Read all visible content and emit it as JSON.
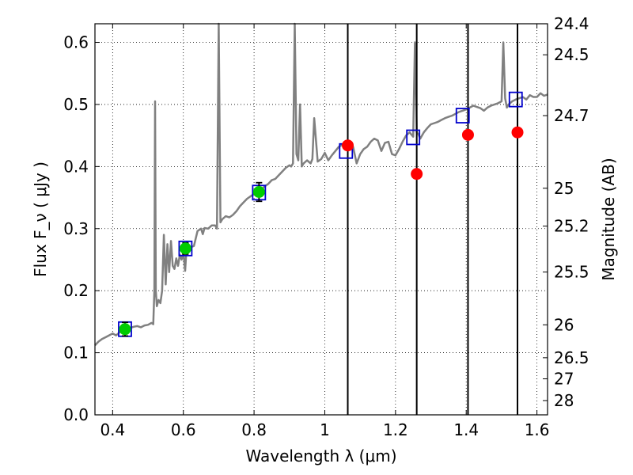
{
  "chart_data": {
    "type": "scatter",
    "title": "",
    "xlabel": "Wavelength  λ (μm)",
    "ylabel": "Flux  F_ν  ( μJy )",
    "ylabel_right": "Magnitude (AB)",
    "xlim": [
      0.35,
      1.63
    ],
    "ylim": [
      0.0,
      0.63
    ],
    "grid": true,
    "legend": "none",
    "x_ticks": [
      0.4,
      0.6,
      0.8,
      1.0,
      1.2,
      1.4,
      1.6
    ],
    "x_tick_labels": [
      "0.4",
      "0.6",
      "0.8",
      "1",
      "1.2",
      "1.4",
      "1.6"
    ],
    "y_ticks": [
      0.0,
      0.1,
      0.2,
      0.3,
      0.4,
      0.5,
      0.6
    ],
    "y_tick_labels": [
      "0.0",
      "0.1",
      "0.2",
      "0.3",
      "0.4",
      "0.5",
      "0.6"
    ],
    "right_ticks": [
      {
        "label": "24.4",
        "flux": 0.63
      },
      {
        "label": "24.5",
        "flux": 0.58
      },
      {
        "label": "24.7",
        "flux": 0.482
      },
      {
        "label": "25",
        "flux": 0.365
      },
      {
        "label": "25.2",
        "flux": 0.304
      },
      {
        "label": "25.5",
        "flux": 0.23
      },
      {
        "label": "26",
        "flux": 0.145
      },
      {
        "label": "26.5",
        "flux": 0.092
      },
      {
        "label": "27",
        "flux": 0.058
      },
      {
        "label": "28",
        "flux": 0.023
      }
    ],
    "colors": {
      "spectrum": "#808080",
      "model_box": "#0000cc",
      "detection": "#00cc00",
      "nondetection": "#ff0000",
      "vline": "#000000"
    },
    "series": [
      {
        "kind": "model-spectrum",
        "x": [
          0.35,
          0.36,
          0.37,
          0.38,
          0.39,
          0.4,
          0.41,
          0.42,
          0.43,
          0.44,
          0.45,
          0.46,
          0.47,
          0.48,
          0.49,
          0.5,
          0.51,
          0.515,
          0.518,
          0.52,
          0.522,
          0.525,
          0.53,
          0.535,
          0.54,
          0.545,
          0.55,
          0.555,
          0.56,
          0.565,
          0.57,
          0.575,
          0.58,
          0.585,
          0.59,
          0.595,
          0.6,
          0.605,
          0.61,
          0.62,
          0.63,
          0.64,
          0.65,
          0.655,
          0.66,
          0.67,
          0.68,
          0.69,
          0.695,
          0.7,
          0.705,
          0.71,
          0.72,
          0.73,
          0.74,
          0.75,
          0.76,
          0.77,
          0.78,
          0.79,
          0.8,
          0.81,
          0.82,
          0.83,
          0.84,
          0.85,
          0.86,
          0.87,
          0.88,
          0.89,
          0.9,
          0.905,
          0.91,
          0.915,
          0.92,
          0.925,
          0.93,
          0.935,
          0.94,
          0.95,
          0.96,
          0.965,
          0.97,
          0.98,
          0.99,
          1.0,
          1.01,
          1.02,
          1.03,
          1.04,
          1.05,
          1.06,
          1.07,
          1.08,
          1.09,
          1.1,
          1.11,
          1.12,
          1.13,
          1.14,
          1.15,
          1.16,
          1.17,
          1.18,
          1.19,
          1.2,
          1.21,
          1.22,
          1.23,
          1.24,
          1.25,
          1.255,
          1.26,
          1.265,
          1.27,
          1.28,
          1.29,
          1.3,
          1.31,
          1.32,
          1.33,
          1.34,
          1.35,
          1.36,
          1.37,
          1.38,
          1.39,
          1.4,
          1.41,
          1.42,
          1.43,
          1.44,
          1.45,
          1.46,
          1.47,
          1.48,
          1.49,
          1.5,
          1.505,
          1.51,
          1.515,
          1.52,
          1.53,
          1.54,
          1.55,
          1.56,
          1.57,
          1.58,
          1.59,
          1.6,
          1.61,
          1.62,
          1.63
        ],
        "y": [
          0.112,
          0.118,
          0.122,
          0.125,
          0.128,
          0.131,
          0.128,
          0.133,
          0.136,
          0.138,
          0.14,
          0.142,
          0.143,
          0.141,
          0.144,
          0.145,
          0.148,
          0.146,
          0.2,
          0.505,
          0.2,
          0.175,
          0.185,
          0.18,
          0.2,
          0.29,
          0.21,
          0.275,
          0.23,
          0.28,
          0.24,
          0.235,
          0.252,
          0.24,
          0.258,
          0.25,
          0.262,
          0.232,
          0.278,
          0.27,
          0.272,
          0.296,
          0.3,
          0.291,
          0.301,
          0.3,
          0.305,
          0.305,
          0.3,
          0.635,
          0.31,
          0.315,
          0.32,
          0.318,
          0.322,
          0.328,
          0.336,
          0.342,
          0.348,
          0.352,
          0.356,
          0.36,
          0.362,
          0.368,
          0.372,
          0.378,
          0.38,
          0.386,
          0.392,
          0.398,
          0.402,
          0.4,
          0.405,
          0.76,
          0.42,
          0.41,
          0.5,
          0.4,
          0.405,
          0.41,
          0.405,
          0.412,
          0.478,
          0.408,
          0.412,
          0.422,
          0.41,
          0.418,
          0.425,
          0.432,
          0.435,
          0.438,
          0.435,
          0.432,
          0.405,
          0.42,
          0.428,
          0.432,
          0.44,
          0.445,
          0.442,
          0.425,
          0.438,
          0.44,
          0.42,
          0.418,
          0.428,
          0.44,
          0.45,
          0.455,
          0.448,
          0.6,
          0.455,
          0.452,
          0.445,
          0.455,
          0.462,
          0.468,
          0.47,
          0.472,
          0.475,
          0.478,
          0.48,
          0.482,
          0.485,
          0.488,
          0.49,
          0.492,
          0.495,
          0.498,
          0.496,
          0.494,
          0.49,
          0.495,
          0.498,
          0.5,
          0.502,
          0.505,
          0.6,
          0.51,
          0.495,
          0.5,
          0.505,
          0.508,
          0.51,
          0.512,
          0.508,
          0.515,
          0.512,
          0.512,
          0.518,
          0.514,
          0.516
        ]
      },
      {
        "kind": "model-photometry",
        "x": [
          0.435,
          0.606,
          0.814,
          1.06,
          1.25,
          1.39,
          1.54
        ],
        "y": [
          0.138,
          0.268,
          0.358,
          0.425,
          0.447,
          0.482,
          0.508
        ]
      },
      {
        "kind": "detections",
        "x": [
          0.435,
          0.606,
          0.814
        ],
        "y": [
          0.138,
          0.268,
          0.359
        ],
        "yerr": [
          0.011,
          0.009,
          0.015
        ]
      },
      {
        "kind": "non-detections",
        "x": [
          1.065,
          1.26,
          1.405,
          1.545
        ],
        "y": [
          0.434,
          0.388,
          0.451,
          0.455
        ]
      }
    ],
    "vlines": [
      1.065,
      1.26,
      1.405,
      1.545
    ]
  }
}
